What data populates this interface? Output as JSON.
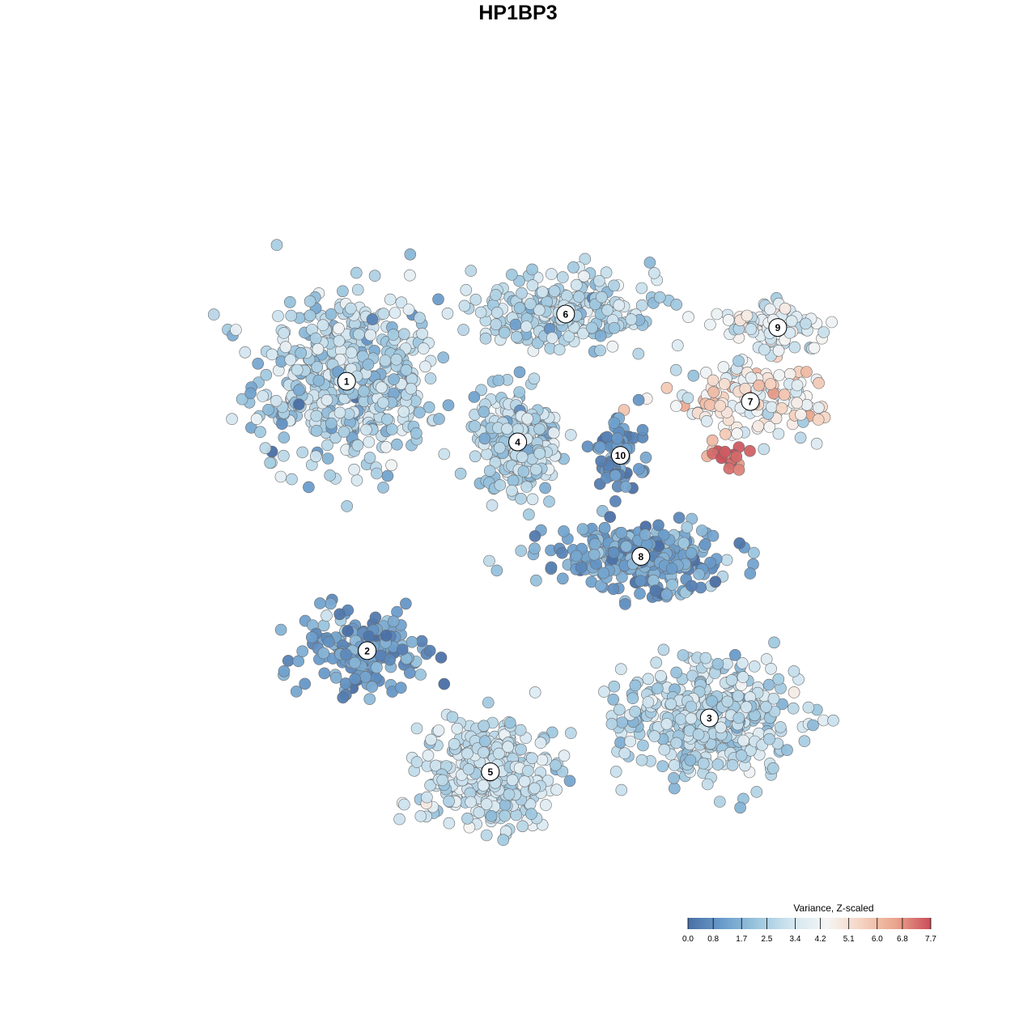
{
  "chart_data": {
    "type": "scatter",
    "title": "HP1BP3",
    "xlabel": "",
    "ylabel": "",
    "grid": false,
    "legend": {
      "title": "Variance, Z-scaled",
      "placement": "bottom-right",
      "min": 0.0,
      "max": 7.7,
      "tick_values": [
        0.0,
        0.8,
        1.7,
        2.5,
        3.4,
        4.2,
        5.1,
        6.0,
        6.8,
        7.7
      ],
      "tick_labels": [
        "0.0",
        "0.8",
        "1.7",
        "2.5",
        "3.4",
        "4.2",
        "5.1",
        "6.0",
        "6.8",
        "7.7"
      ],
      "colors": [
        "#4a6fa5",
        "#6a9ccb",
        "#9cc6de",
        "#d3e6f0",
        "#f5f5f5",
        "#f5d3c1",
        "#eaa48c",
        "#c94d5a"
      ]
    },
    "clusters": [
      {
        "label": "1",
        "x": -2.8,
        "y": 2.0,
        "spread_x": 1.5,
        "spread_y": 1.5,
        "count": 480,
        "mean_value": 2.6,
        "sd_value": 0.7
      },
      {
        "label": "2",
        "x": -2.5,
        "y": -2.0,
        "spread_x": 1.1,
        "spread_y": 0.7,
        "count": 160,
        "mean_value": 1.1,
        "sd_value": 0.6
      },
      {
        "label": "3",
        "x": 2.5,
        "y": -3.0,
        "spread_x": 1.4,
        "spread_y": 1.0,
        "count": 420,
        "mean_value": 2.8,
        "sd_value": 0.6
      },
      {
        "label": "4",
        "x": -0.3,
        "y": 1.1,
        "spread_x": 0.7,
        "spread_y": 0.8,
        "count": 220,
        "mean_value": 2.6,
        "sd_value": 0.7
      },
      {
        "label": "5",
        "x": -0.7,
        "y": -3.8,
        "spread_x": 1.1,
        "spread_y": 0.9,
        "count": 360,
        "mean_value": 3.0,
        "sd_value": 0.5
      },
      {
        "label": "6",
        "x": 0.4,
        "y": 3.0,
        "spread_x": 1.5,
        "spread_y": 0.6,
        "count": 260,
        "mean_value": 2.7,
        "sd_value": 0.7
      },
      {
        "label": "7",
        "x": 3.1,
        "y": 1.7,
        "spread_x": 1.2,
        "spread_y": 0.6,
        "count": 150,
        "mean_value": 4.6,
        "sd_value": 1.0
      },
      {
        "label": "8",
        "x": 1.5,
        "y": -0.6,
        "spread_x": 1.4,
        "spread_y": 0.5,
        "count": 300,
        "mean_value": 1.3,
        "sd_value": 0.6
      },
      {
        "label": "9",
        "x": 3.5,
        "y": 2.8,
        "spread_x": 0.9,
        "spread_y": 0.4,
        "count": 90,
        "mean_value": 3.4,
        "sd_value": 0.8
      },
      {
        "label": "10",
        "x": 1.2,
        "y": 0.9,
        "spread_x": 0.4,
        "spread_y": 0.6,
        "count": 70,
        "mean_value": 0.8,
        "sd_value": 0.5
      }
    ],
    "hotspot": {
      "x": 2.8,
      "y": 0.9,
      "spread_x": 0.35,
      "spread_y": 0.25,
      "count": 18,
      "mean_value": 7.3,
      "sd_value": 0.3
    },
    "xlim": [
      -5.5,
      5.5
    ],
    "ylim": [
      -5.5,
      5.5
    ]
  }
}
